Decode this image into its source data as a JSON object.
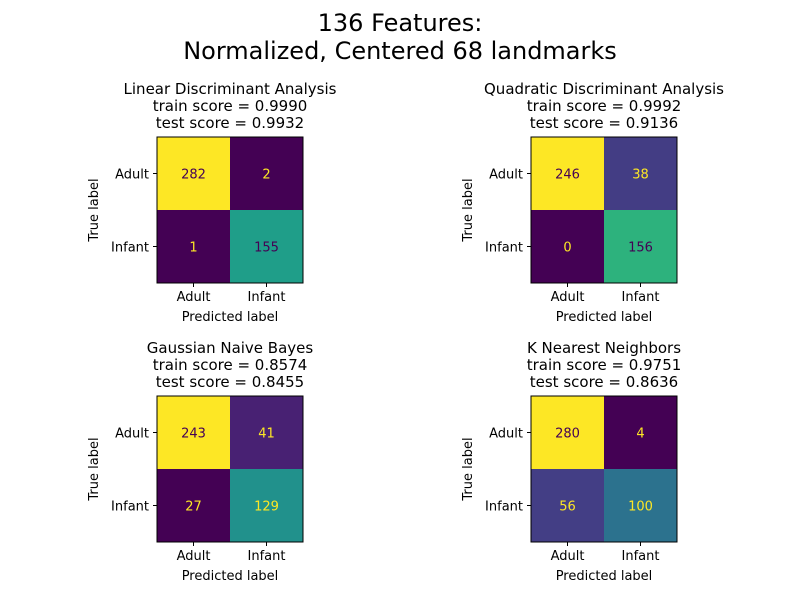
{
  "figure": {
    "title_line1": "136 Features:",
    "title_line2": "Normalized, Centered 68 landmarks"
  },
  "chart_data": [
    {
      "type": "heatmap",
      "title": "Linear Discriminant Analysis",
      "train_score": "train score = 0.9990",
      "test_score": "test score = 0.9932",
      "xlabel": "Predicted label",
      "ylabel": "True label",
      "x_categories": [
        "Adult",
        "Infant"
      ],
      "y_categories": [
        "Adult",
        "Infant"
      ],
      "values": [
        [
          282,
          2
        ],
        [
          1,
          155
        ]
      ],
      "colors": [
        [
          "#fde725",
          "#440154"
        ],
        [
          "#440154",
          "#1f9e89"
        ]
      ],
      "text_colors": [
        [
          "#440154",
          "#fde725"
        ],
        [
          "#fde725",
          "#440154"
        ]
      ]
    },
    {
      "type": "heatmap",
      "title": "Quadratic Discriminant Analysis",
      "train_score": "train score = 0.9992",
      "test_score": "test score = 0.9136",
      "xlabel": "Predicted label",
      "ylabel": "True label",
      "x_categories": [
        "Adult",
        "Infant"
      ],
      "y_categories": [
        "Adult",
        "Infant"
      ],
      "values": [
        [
          246,
          38
        ],
        [
          0,
          156
        ]
      ],
      "colors": [
        [
          "#fde725",
          "#433d84"
        ],
        [
          "#440154",
          "#2db27d"
        ]
      ],
      "text_colors": [
        [
          "#440154",
          "#fde725"
        ],
        [
          "#fde725",
          "#440154"
        ]
      ]
    },
    {
      "type": "heatmap",
      "title": "Gaussian Naive Bayes",
      "train_score": "train score = 0.8574",
      "test_score": "test score = 0.8455",
      "xlabel": "Predicted label",
      "ylabel": "True label",
      "x_categories": [
        "Adult",
        "Infant"
      ],
      "y_categories": [
        "Adult",
        "Infant"
      ],
      "values": [
        [
          243,
          41
        ],
        [
          27,
          129
        ]
      ],
      "colors": [
        [
          "#fde725",
          "#482173"
        ],
        [
          "#440154",
          "#21918c"
        ]
      ],
      "text_colors": [
        [
          "#440154",
          "#fde725"
        ],
        [
          "#fde725",
          "#fde725"
        ]
      ]
    },
    {
      "type": "heatmap",
      "title": "K Nearest Neighbors",
      "train_score": "train score = 0.9751",
      "test_score": "test score = 0.8636",
      "xlabel": "Predicted label",
      "ylabel": "True label",
      "x_categories": [
        "Adult",
        "Infant"
      ],
      "y_categories": [
        "Adult",
        "Infant"
      ],
      "values": [
        [
          280,
          4
        ],
        [
          56,
          100
        ]
      ],
      "colors": [
        [
          "#fde725",
          "#440154"
        ],
        [
          "#433e85",
          "#2c728e"
        ]
      ],
      "text_colors": [
        [
          "#440154",
          "#fde725"
        ],
        [
          "#fde725",
          "#fde725"
        ]
      ]
    }
  ]
}
